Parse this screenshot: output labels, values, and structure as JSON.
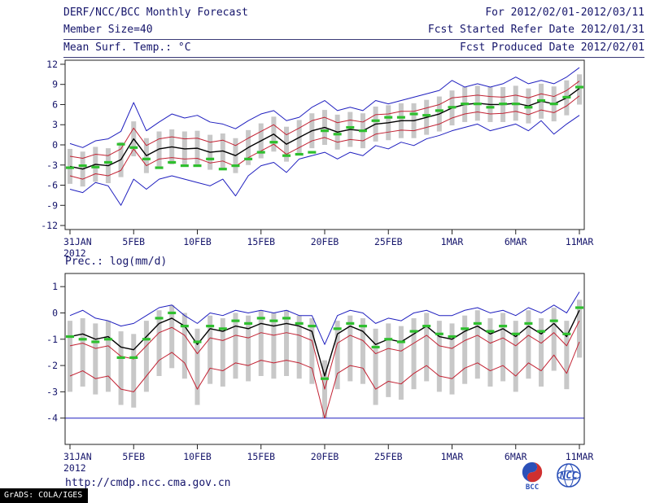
{
  "header": {
    "title_left": "DERF/NCC/BCC Monthly Forecast",
    "title_right": "For 2012/02/01-2012/03/11",
    "row2_left": "Member Size=40",
    "row2_right": "Fcst Started Refer Date 2012/01/31",
    "row3_left": "Mean Surf. Temp.: °C",
    "row3_right": "Fcst Produced Date 2012/02/01"
  },
  "labels": {
    "precip_panel": "Prec.: log(mm/d)"
  },
  "footer": {
    "url": "http://cmdp.ncc.cma.gov.cn",
    "logo_bcc": "BCC",
    "logo_ncc": "NCC",
    "grads_tag": "GrADS: COLA/IGES"
  },
  "colors": {
    "text": "#15156b",
    "frame": "#222222",
    "blue_line": "#1f1fbf",
    "red_line": "#c22233",
    "mean_line": "#000000",
    "green_marker": "#2ebf2e",
    "bar_gray": "#c8c8c8"
  },
  "chart_data": [
    {
      "type": "line",
      "title": "Mean Surf. Temp.: °C",
      "n_points": 41,
      "x_tick_indices": [
        0,
        5,
        10,
        15,
        20,
        25,
        30,
        35,
        40
      ],
      "x_tick_labels": [
        "31JAN",
        "5FEB",
        "10FEB",
        "15FEB",
        "20FEB",
        "25FEB",
        "1MAR",
        "6MAR",
        "11MAR"
      ],
      "x_year": "2012",
      "ylim": [
        -12.6,
        12.6
      ],
      "yticks": [
        -12,
        -9,
        -6,
        -3,
        0,
        3,
        6,
        9,
        12
      ],
      "series": [
        {
          "name": "ensemble-max",
          "color": "#1f1fbf",
          "width": 1,
          "values": [
            0.2,
            -0.4,
            0.6,
            0.9,
            2.0,
            6.3,
            2.1,
            3.4,
            4.6,
            4.0,
            4.4,
            3.4,
            3.1,
            2.4,
            3.6,
            4.6,
            5.1,
            3.6,
            4.1,
            5.6,
            6.6,
            5.1,
            5.6,
            5.1,
            6.6,
            6.1,
            6.6,
            7.1,
            7.6,
            8.1,
            9.6,
            8.6,
            9.1,
            8.6,
            9.1,
            10.1,
            9.1,
            9.6,
            9.1,
            10.1,
            11.5
          ]
        },
        {
          "name": "upper-quartile",
          "color": "#c22233",
          "width": 1,
          "values": [
            -1.7,
            -2.0,
            -1.4,
            -1.6,
            -0.6,
            2.5,
            -0.1,
            0.9,
            1.2,
            0.9,
            1.0,
            0.4,
            0.7,
            -0.1,
            1.0,
            2.0,
            3.0,
            1.5,
            2.5,
            3.6,
            4.1,
            3.3,
            3.7,
            3.4,
            4.5,
            4.6,
            5.0,
            5.0,
            5.5,
            6.0,
            7.0,
            7.2,
            7.4,
            7.2,
            7.1,
            7.4,
            7.0,
            7.6,
            7.2,
            8.1,
            9.5
          ]
        },
        {
          "name": "ensemble-mean",
          "color": "#000000",
          "width": 1.4,
          "values": [
            -3.2,
            -3.6,
            -2.9,
            -3.1,
            -2.2,
            0.9,
            -1.6,
            -0.6,
            -0.3,
            -0.6,
            -0.5,
            -1.1,
            -0.9,
            -1.6,
            -0.4,
            0.6,
            1.6,
            0.1,
            1.1,
            2.1,
            2.6,
            1.9,
            2.3,
            2.1,
            3.1,
            3.3,
            3.6,
            3.6,
            4.1,
            4.6,
            5.5,
            6.0,
            6.2,
            6.0,
            6.0,
            6.2,
            5.8,
            6.5,
            6.1,
            7.0,
            8.4
          ]
        },
        {
          "name": "lower-quartile",
          "color": "#c22233",
          "width": 1,
          "values": [
            -4.6,
            -5.1,
            -4.3,
            -4.6,
            -3.8,
            -0.6,
            -3.1,
            -2.1,
            -1.9,
            -2.1,
            -2.0,
            -2.7,
            -2.4,
            -3.2,
            -1.9,
            -0.9,
            0.1,
            -1.4,
            -0.4,
            0.6,
            1.1,
            0.4,
            0.8,
            0.6,
            1.6,
            1.9,
            2.2,
            2.1,
            2.6,
            3.1,
            4.0,
            4.6,
            4.9,
            4.6,
            4.7,
            5.0,
            4.5,
            5.2,
            4.8,
            5.8,
            7.3
          ]
        },
        {
          "name": "ensemble-min",
          "color": "#1f1fbf",
          "width": 1,
          "values": [
            -6.6,
            -7.1,
            -5.6,
            -6.1,
            -9.0,
            -5.1,
            -6.6,
            -5.1,
            -4.6,
            -5.1,
            -5.6,
            -6.1,
            -5.1,
            -7.6,
            -4.6,
            -3.1,
            -2.6,
            -4.1,
            -2.1,
            -1.6,
            -1.1,
            -2.1,
            -1.1,
            -1.6,
            -0.1,
            -0.6,
            0.4,
            -0.1,
            0.9,
            1.4,
            2.1,
            2.6,
            3.1,
            2.1,
            2.6,
            3.1,
            2.1,
            3.6,
            1.6,
            3.1,
            4.4
          ]
        }
      ],
      "markers": {
        "name": "green-dash",
        "color": "#2ebf2e",
        "values": [
          -3.4,
          -3.1,
          -3.3,
          -2.6,
          0.1,
          -0.4,
          -2.1,
          -3.4,
          -2.6,
          -3.1,
          -3.1,
          -2.1,
          -3.6,
          -3.1,
          -2.1,
          -1.1,
          0.4,
          -1.6,
          -1.4,
          -1.1,
          2.1,
          1.6,
          2.6,
          2.1,
          3.6,
          4.1,
          4.1,
          4.6,
          4.4,
          5.1,
          5.6,
          6.1,
          6.1,
          5.6,
          6.1,
          6.1,
          5.6,
          6.6,
          6.1,
          7.1,
          8.6
        ]
      },
      "bars": {
        "color": "#c8c8c8",
        "low": [
          -5.8,
          -6.2,
          -5.5,
          -5.7,
          -4.8,
          -1.7,
          -4.2,
          -3.2,
          -2.9,
          -3.2,
          -3.1,
          -3.7,
          -3.5,
          -4.2,
          -3.0,
          -2.0,
          -1.0,
          -2.5,
          -1.5,
          -0.5,
          0.0,
          -0.7,
          -0.3,
          -0.5,
          0.5,
          0.7,
          1.0,
          1.0,
          1.5,
          2.0,
          2.9,
          3.4,
          3.6,
          3.4,
          3.4,
          3.6,
          3.2,
          3.9,
          3.5,
          4.4,
          6.0
        ],
        "high": [
          -0.6,
          -1.0,
          -0.3,
          -0.5,
          0.4,
          3.5,
          1.0,
          2.0,
          2.3,
          2.0,
          2.1,
          1.5,
          1.7,
          1.0,
          2.2,
          3.2,
          4.2,
          2.7,
          3.7,
          4.7,
          5.2,
          4.5,
          4.9,
          4.7,
          5.7,
          5.9,
          6.2,
          6.2,
          6.7,
          7.2,
          8.1,
          8.6,
          8.8,
          8.6,
          8.6,
          8.8,
          8.4,
          9.1,
          8.7,
          9.6,
          10.5
        ]
      }
    },
    {
      "type": "line",
      "title": "Prec.: log(mm/d)",
      "n_points": 41,
      "x_tick_indices": [
        0,
        5,
        10,
        15,
        20,
        25,
        30,
        35,
        40
      ],
      "x_tick_labels": [
        "31JAN",
        "5FEB",
        "10FEB",
        "15FEB",
        "20FEB",
        "25FEB",
        "1MAR",
        "6MAR",
        "11MAR"
      ],
      "x_year": "2012",
      "ylim": [
        -5.0,
        1.5
      ],
      "yticks": [
        -4,
        -3,
        -2,
        -1,
        0,
        1
      ],
      "baseline": -4,
      "series": [
        {
          "name": "ensemble-max",
          "color": "#1f1fbf",
          "width": 1,
          "values": [
            -0.1,
            0.1,
            -0.2,
            -0.3,
            -0.5,
            -0.4,
            -0.1,
            0.2,
            0.3,
            -0.1,
            -0.4,
            0.0,
            -0.1,
            0.1,
            0.0,
            0.1,
            0.0,
            0.1,
            -0.1,
            -0.1,
            -1.2,
            -0.1,
            0.1,
            0.0,
            -0.4,
            -0.2,
            -0.3,
            0.0,
            0.1,
            -0.1,
            -0.1,
            0.1,
            0.2,
            0.0,
            0.1,
            -0.1,
            0.2,
            0.0,
            0.3,
            0.0,
            0.8
          ]
        },
        {
          "name": "ensemble-mean",
          "color": "#000000",
          "width": 1.4,
          "values": [
            -0.9,
            -0.8,
            -1.0,
            -0.9,
            -1.3,
            -1.4,
            -0.9,
            -0.4,
            -0.2,
            -0.5,
            -1.2,
            -0.6,
            -0.7,
            -0.5,
            -0.6,
            -0.4,
            -0.5,
            -0.4,
            -0.5,
            -0.7,
            -2.4,
            -0.8,
            -0.5,
            -0.7,
            -1.2,
            -1.0,
            -1.1,
            -0.8,
            -0.5,
            -0.9,
            -1.0,
            -0.7,
            -0.5,
            -0.8,
            -0.6,
            -0.9,
            -0.5,
            -0.8,
            -0.4,
            -0.9,
            0.1
          ]
        },
        {
          "name": "upper-quartile",
          "color": "#c22233",
          "width": 1,
          "values": [
            -1.25,
            -1.15,
            -1.35,
            -1.25,
            -1.65,
            -1.75,
            -1.25,
            -0.75,
            -0.55,
            -0.85,
            -1.55,
            -0.95,
            -1.05,
            -0.85,
            -0.95,
            -0.75,
            -0.85,
            -0.75,
            -0.85,
            -1.05,
            -2.9,
            -1.15,
            -0.85,
            -1.05,
            -1.55,
            -1.35,
            -1.45,
            -1.15,
            -0.85,
            -1.25,
            -1.35,
            -1.05,
            -0.85,
            -1.15,
            -0.95,
            -1.25,
            -0.85,
            -1.15,
            -0.75,
            -1.25,
            -0.3
          ]
        },
        {
          "name": "lower-quartile",
          "color": "#c22233",
          "width": 1,
          "values": [
            -2.4,
            -2.2,
            -2.5,
            -2.4,
            -2.9,
            -3.0,
            -2.4,
            -1.8,
            -1.5,
            -1.9,
            -2.9,
            -2.1,
            -2.2,
            -1.9,
            -2.0,
            -1.8,
            -1.9,
            -1.8,
            -1.9,
            -2.1,
            -4.0,
            -2.3,
            -2.0,
            -2.1,
            -2.9,
            -2.6,
            -2.7,
            -2.3,
            -2.0,
            -2.4,
            -2.5,
            -2.1,
            -1.9,
            -2.2,
            -2.0,
            -2.4,
            -1.9,
            -2.2,
            -1.6,
            -2.3,
            -1.1
          ]
        }
      ],
      "markers": {
        "name": "green-dash",
        "color": "#2ebf2e",
        "values": [
          -0.9,
          -1.0,
          -1.1,
          -1.0,
          -1.7,
          -1.7,
          -1.0,
          -0.2,
          0.0,
          -0.5,
          -1.1,
          -0.5,
          -0.6,
          -0.3,
          -0.4,
          -0.2,
          -0.3,
          -0.2,
          -0.4,
          -0.5,
          -2.5,
          -0.6,
          -0.4,
          -0.5,
          -1.3,
          -1.0,
          -1.1,
          -0.7,
          -0.5,
          -0.8,
          -0.9,
          -0.6,
          -0.4,
          -0.7,
          -0.5,
          -0.8,
          -0.4,
          -0.7,
          -0.3,
          -0.8,
          0.2
        ]
      },
      "bars": {
        "color": "#c8c8c8",
        "low": [
          -3.0,
          -2.8,
          -3.1,
          -3.0,
          -3.5,
          -3.6,
          -3.0,
          -2.4,
          -2.1,
          -2.5,
          -3.5,
          -2.7,
          -2.8,
          -2.5,
          -2.6,
          -2.4,
          -2.5,
          -2.4,
          -2.5,
          -2.7,
          -4.0,
          -2.9,
          -2.6,
          -2.7,
          -3.5,
          -3.2,
          -3.3,
          -2.9,
          -2.6,
          -3.0,
          -3.1,
          -2.7,
          -2.5,
          -2.8,
          -2.6,
          -3.0,
          -2.5,
          -2.8,
          -2.2,
          -2.9,
          -1.7
        ],
        "high": [
          -0.3,
          -0.2,
          -0.4,
          -0.3,
          -0.7,
          -0.8,
          -0.3,
          0.1,
          0.3,
          0.0,
          -0.6,
          -0.1,
          -0.2,
          0.0,
          -0.1,
          0.1,
          0.0,
          0.1,
          -0.1,
          -0.2,
          -1.8,
          -0.3,
          -0.1,
          -0.2,
          -0.6,
          -0.4,
          -0.5,
          -0.2,
          0.0,
          -0.3,
          -0.4,
          -0.1,
          0.1,
          -0.2,
          0.0,
          -0.3,
          0.1,
          -0.2,
          0.2,
          -0.3,
          0.5
        ]
      }
    }
  ]
}
